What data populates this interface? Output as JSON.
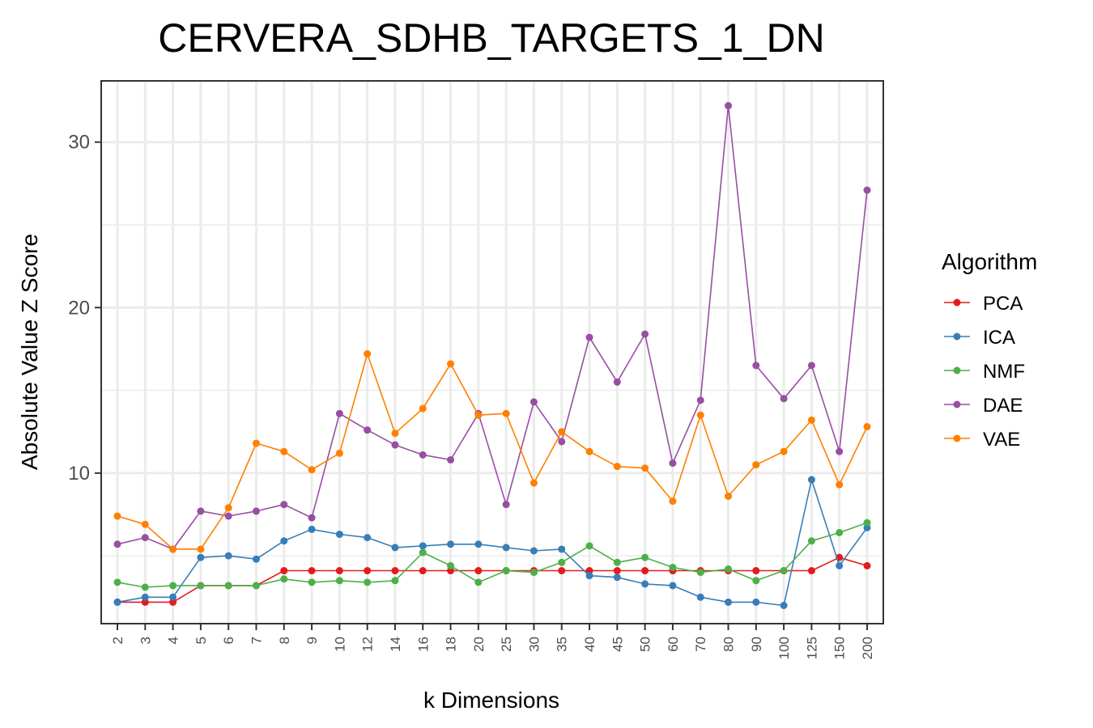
{
  "chart_data": {
    "type": "line",
    "title": "CERVERA_SDHB_TARGETS_1_DN",
    "xlabel": "k Dimensions",
    "ylabel": "Absolute Value Z Score",
    "categories": [
      "2",
      "3",
      "4",
      "5",
      "6",
      "7",
      "8",
      "9",
      "10",
      "12",
      "14",
      "16",
      "18",
      "20",
      "25",
      "30",
      "35",
      "40",
      "45",
      "50",
      "60",
      "70",
      "80",
      "90",
      "100",
      "125",
      "150",
      "200"
    ],
    "y_ticks": [
      10,
      20,
      30
    ],
    "ylim": [
      0.9,
      33.7
    ],
    "grid": true,
    "legend": {
      "title": "Algorithm",
      "position": "right"
    },
    "series": [
      {
        "name": "PCA",
        "color": "#E41A1C",
        "values": [
          2.2,
          2.2,
          2.2,
          3.2,
          3.2,
          3.2,
          4.1,
          4.1,
          4.1,
          4.1,
          4.1,
          4.1,
          4.1,
          4.1,
          4.1,
          4.1,
          4.1,
          4.1,
          4.1,
          4.1,
          4.1,
          4.1,
          4.1,
          4.1,
          4.1,
          4.1,
          4.9,
          4.4
        ]
      },
      {
        "name": "ICA",
        "color": "#377EB8",
        "values": [
          2.2,
          2.5,
          2.5,
          4.9,
          5.0,
          4.8,
          5.9,
          6.6,
          6.3,
          6.1,
          5.5,
          5.6,
          5.7,
          5.7,
          5.5,
          5.3,
          5.4,
          3.8,
          3.7,
          3.3,
          3.2,
          2.5,
          2.2,
          2.2,
          2.0,
          9.6,
          4.4,
          6.7
        ]
      },
      {
        "name": "NMF",
        "color": "#4DAF4A",
        "values": [
          3.4,
          3.1,
          3.2,
          3.2,
          3.2,
          3.2,
          3.6,
          3.4,
          3.5,
          3.4,
          3.5,
          5.2,
          4.4,
          3.4,
          4.1,
          4.0,
          4.6,
          5.6,
          4.6,
          4.9,
          4.3,
          4.0,
          4.2,
          3.5,
          4.1,
          5.9,
          6.4,
          7.0
        ]
      },
      {
        "name": "DAE",
        "color": "#984EA3",
        "values": [
          5.7,
          6.1,
          5.4,
          7.7,
          7.4,
          7.7,
          8.1,
          7.3,
          13.6,
          12.6,
          11.7,
          11.1,
          10.8,
          13.6,
          8.1,
          14.3,
          11.9,
          18.2,
          15.5,
          18.4,
          10.6,
          14.4,
          32.2,
          16.5,
          14.5,
          16.5,
          11.3,
          27.1
        ]
      },
      {
        "name": "VAE",
        "color": "#FF7F00",
        "values": [
          7.4,
          6.9,
          5.4,
          5.4,
          7.9,
          11.8,
          11.3,
          10.2,
          11.2,
          17.2,
          12.4,
          13.9,
          16.6,
          13.5,
          13.6,
          9.4,
          12.5,
          11.3,
          10.4,
          10.3,
          8.3,
          13.5,
          8.6,
          10.5,
          11.3,
          13.2,
          9.3,
          12.8
        ]
      }
    ]
  }
}
